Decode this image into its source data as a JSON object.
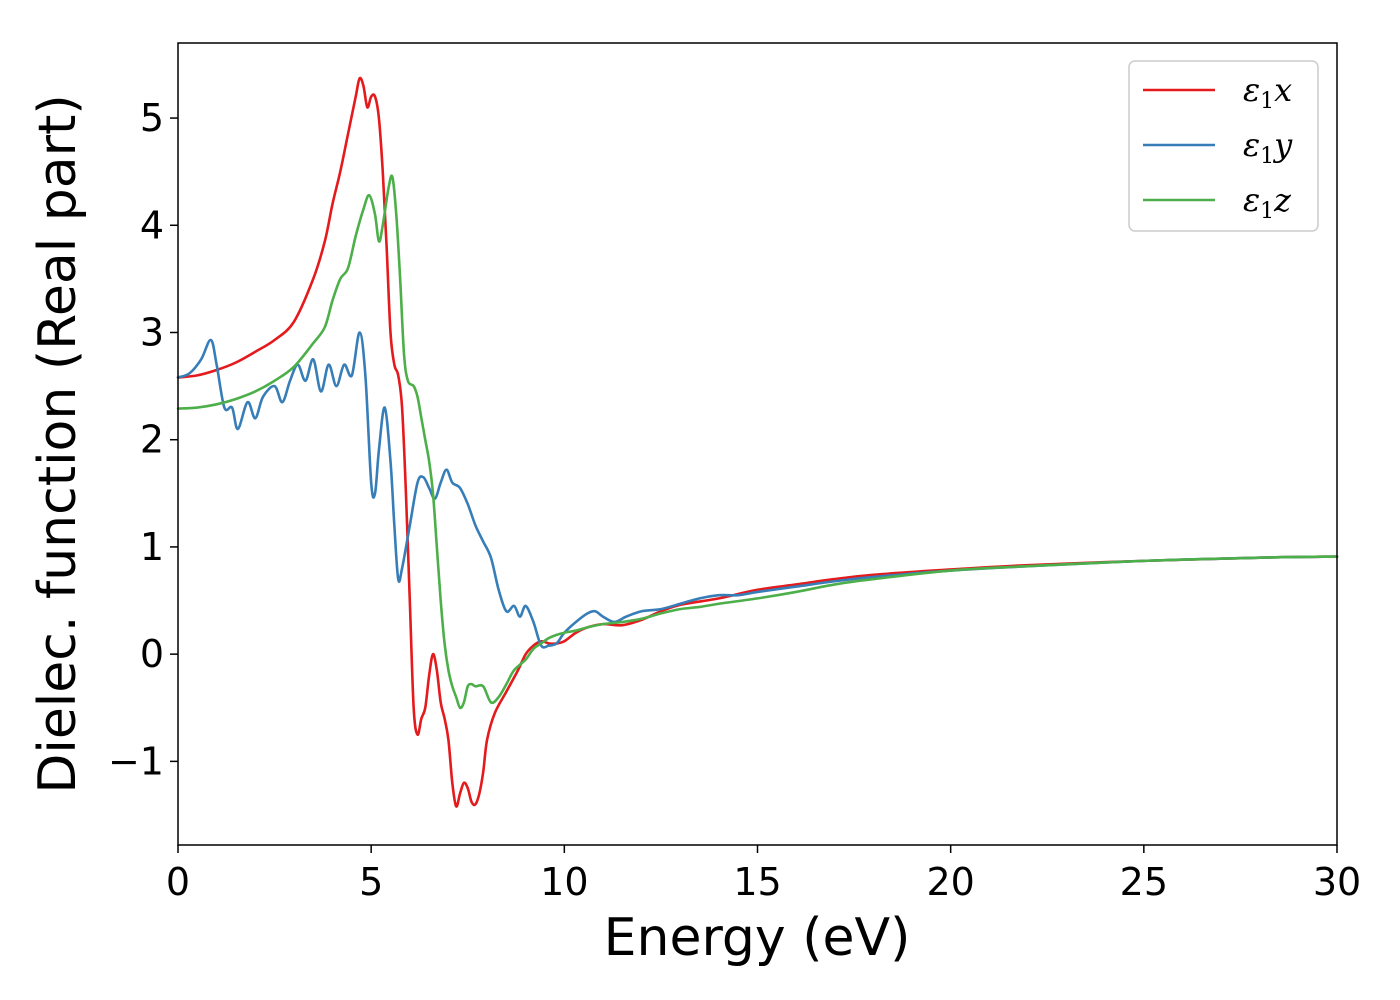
{
  "chart_data": {
    "type": "line",
    "xlabel": "Energy (eV)",
    "ylabel": "Dielec. function (Real part)",
    "xlim": [
      0,
      30
    ],
    "ylim": [
      -1.78,
      5.7
    ],
    "xticks": [
      0,
      5,
      10,
      15,
      20,
      25,
      30
    ],
    "yticks": [
      -1,
      0,
      1,
      2,
      3,
      4,
      5
    ],
    "xtick_labels": [
      "0",
      "5",
      "10",
      "15",
      "20",
      "25",
      "30"
    ],
    "ytick_labels": [
      "−1",
      "0",
      "1",
      "2",
      "3",
      "4",
      "5"
    ],
    "grid": false,
    "legend_position": "top-right",
    "series": [
      {
        "name": "ε₁x",
        "legend_main": "ε",
        "legend_sub": "1",
        "legend_var": "x",
        "color": "#e41a1c",
        "x": [
          0,
          0.5,
          1,
          1.5,
          2,
          2.5,
          3,
          3.5,
          3.8,
          4,
          4.2,
          4.4,
          4.6,
          4.7,
          4.8,
          4.9,
          5.0,
          5.1,
          5.2,
          5.3,
          5.4,
          5.5,
          5.6,
          5.7,
          5.8,
          5.9,
          6.0,
          6.1,
          6.2,
          6.3,
          6.4,
          6.5,
          6.6,
          6.7,
          6.8,
          6.9,
          7.0,
          7.1,
          7.2,
          7.3,
          7.4,
          7.5,
          7.6,
          7.7,
          7.8,
          7.9,
          8.0,
          8.2,
          8.5,
          8.8,
          9.0,
          9.2,
          9.4,
          9.6,
          9.8,
          10,
          10.3,
          10.6,
          11,
          11.5,
          12,
          12.5,
          13,
          14,
          15,
          16,
          17,
          18,
          20,
          22,
          25,
          28,
          30
        ],
        "y": [
          2.58,
          2.6,
          2.65,
          2.72,
          2.82,
          2.93,
          3.1,
          3.5,
          3.85,
          4.2,
          4.5,
          4.85,
          5.2,
          5.37,
          5.3,
          5.1,
          5.2,
          5.2,
          5.0,
          4.5,
          3.8,
          3.0,
          2.7,
          2.6,
          2.3,
          1.5,
          0.5,
          -0.5,
          -0.75,
          -0.6,
          -0.5,
          -0.2,
          0.0,
          -0.15,
          -0.45,
          -0.6,
          -0.8,
          -1.2,
          -1.42,
          -1.3,
          -1.2,
          -1.25,
          -1.38,
          -1.4,
          -1.3,
          -1.1,
          -0.8,
          -0.55,
          -0.35,
          -0.15,
          0.0,
          0.08,
          0.12,
          0.1,
          0.1,
          0.12,
          0.2,
          0.25,
          0.28,
          0.27,
          0.32,
          0.4,
          0.46,
          0.52,
          0.6,
          0.65,
          0.7,
          0.74,
          0.79,
          0.83,
          0.87,
          0.9,
          0.91
        ]
      },
      {
        "name": "ε₁y",
        "legend_main": "ε",
        "legend_sub": "1",
        "legend_var": "y",
        "color": "#377eb8",
        "x": [
          0,
          0.3,
          0.6,
          0.85,
          1.0,
          1.2,
          1.4,
          1.55,
          1.8,
          2.0,
          2.2,
          2.5,
          2.7,
          2.9,
          3.1,
          3.3,
          3.5,
          3.7,
          3.9,
          4.1,
          4.3,
          4.5,
          4.7,
          4.85,
          5.0,
          5.1,
          5.2,
          5.35,
          5.5,
          5.6,
          5.7,
          5.8,
          6.0,
          6.2,
          6.35,
          6.5,
          6.65,
          6.8,
          6.95,
          7.1,
          7.3,
          7.5,
          7.7,
          7.9,
          8.1,
          8.3,
          8.5,
          8.7,
          8.85,
          9.0,
          9.2,
          9.4,
          9.6,
          9.8,
          10,
          10.3,
          10.6,
          10.8,
          11,
          11.3,
          11.6,
          12,
          12.5,
          13,
          13.5,
          14,
          14.5,
          15,
          16,
          17,
          18,
          20,
          22,
          25,
          28,
          30
        ],
        "y": [
          2.58,
          2.62,
          2.75,
          2.93,
          2.7,
          2.3,
          2.3,
          2.1,
          2.35,
          2.2,
          2.4,
          2.5,
          2.35,
          2.55,
          2.7,
          2.55,
          2.75,
          2.45,
          2.7,
          2.5,
          2.7,
          2.6,
          3.0,
          2.6,
          1.6,
          1.5,
          1.9,
          2.3,
          1.8,
          1.2,
          0.7,
          0.8,
          1.2,
          1.6,
          1.65,
          1.55,
          1.45,
          1.6,
          1.72,
          1.6,
          1.55,
          1.4,
          1.2,
          1.05,
          0.9,
          0.6,
          0.4,
          0.45,
          0.35,
          0.45,
          0.3,
          0.08,
          0.08,
          0.1,
          0.2,
          0.3,
          0.38,
          0.4,
          0.35,
          0.3,
          0.35,
          0.4,
          0.42,
          0.47,
          0.52,
          0.55,
          0.55,
          0.58,
          0.63,
          0.68,
          0.72,
          0.78,
          0.82,
          0.87,
          0.9,
          0.91
        ]
      },
      {
        "name": "ε₁z",
        "legend_main": "ε",
        "legend_sub": "1",
        "legend_var": "z",
        "color": "#4daf4a",
        "x": [
          0,
          0.5,
          1,
          1.5,
          2,
          2.5,
          3,
          3.5,
          3.8,
          4.0,
          4.2,
          4.4,
          4.6,
          4.8,
          4.95,
          5.1,
          5.2,
          5.3,
          5.45,
          5.55,
          5.65,
          5.75,
          5.85,
          5.95,
          6.1,
          6.2,
          6.3,
          6.4,
          6.5,
          6.6,
          6.7,
          6.8,
          6.9,
          7.0,
          7.1,
          7.2,
          7.3,
          7.4,
          7.5,
          7.6,
          7.7,
          7.9,
          8.1,
          8.3,
          8.5,
          8.7,
          9.0,
          9.2,
          9.4,
          9.6,
          9.8,
          10,
          10.3,
          10.6,
          11,
          11.5,
          12,
          12.5,
          13,
          13.5,
          14,
          15,
          16,
          17,
          18,
          20,
          22,
          25,
          28,
          30
        ],
        "y": [
          2.29,
          2.3,
          2.33,
          2.38,
          2.45,
          2.55,
          2.68,
          2.9,
          3.05,
          3.3,
          3.5,
          3.6,
          3.9,
          4.15,
          4.28,
          4.1,
          3.85,
          4.0,
          4.35,
          4.45,
          4.1,
          3.5,
          2.8,
          2.55,
          2.5,
          2.4,
          2.2,
          2.0,
          1.8,
          1.5,
          1.0,
          0.5,
          0.1,
          -0.15,
          -0.3,
          -0.4,
          -0.5,
          -0.45,
          -0.3,
          -0.28,
          -0.3,
          -0.3,
          -0.45,
          -0.4,
          -0.28,
          -0.15,
          -0.05,
          0.05,
          0.1,
          0.15,
          0.18,
          0.2,
          0.22,
          0.25,
          0.28,
          0.3,
          0.33,
          0.38,
          0.42,
          0.44,
          0.47,
          0.52,
          0.58,
          0.65,
          0.7,
          0.78,
          0.82,
          0.87,
          0.9,
          0.91
        ]
      }
    ]
  }
}
